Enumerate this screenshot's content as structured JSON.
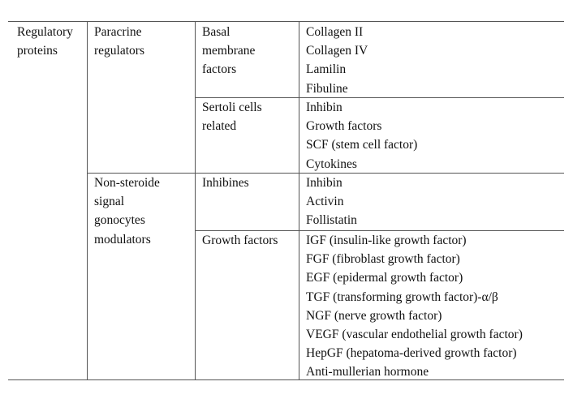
{
  "table": {
    "level1": [
      "Regulatory",
      "proteins"
    ],
    "paracrine": {
      "label": [
        "Paracrine",
        "regulators"
      ],
      "basal": {
        "label": [
          "Basal",
          "membrane",
          "factors"
        ],
        "items": [
          "Collagen II",
          "Collagen IV",
          "Lamilin",
          "Fibuline"
        ]
      },
      "sertoli": {
        "label": [
          "Sertoli cells",
          "related"
        ],
        "items": [
          "Inhibin",
          "Growth factors",
          "SCF (stem cell factor)",
          "Cytokines"
        ]
      }
    },
    "nonsteroide": {
      "label": [
        "Non-steroide",
        "signal",
        "gonocytes",
        "modulators"
      ],
      "inhibines": {
        "label": [
          "Inhibines"
        ],
        "items": [
          "Inhibin",
          "Activin",
          "Follistatin"
        ]
      },
      "growth": {
        "label": [
          "Growth factors"
        ],
        "items": [
          "IGF (insulin-like growth factor)",
          "FGF (fibroblast growth factor)",
          "EGF (epidermal growth factor)",
          "TGF (transforming growth factor)-α/β",
          "NGF (nerve growth factor)",
          "VEGF (vascular endothelial growth factor)",
          "HepGF (hepatoma-derived growth factor)",
          "Anti-mullerian hormone"
        ]
      }
    }
  }
}
